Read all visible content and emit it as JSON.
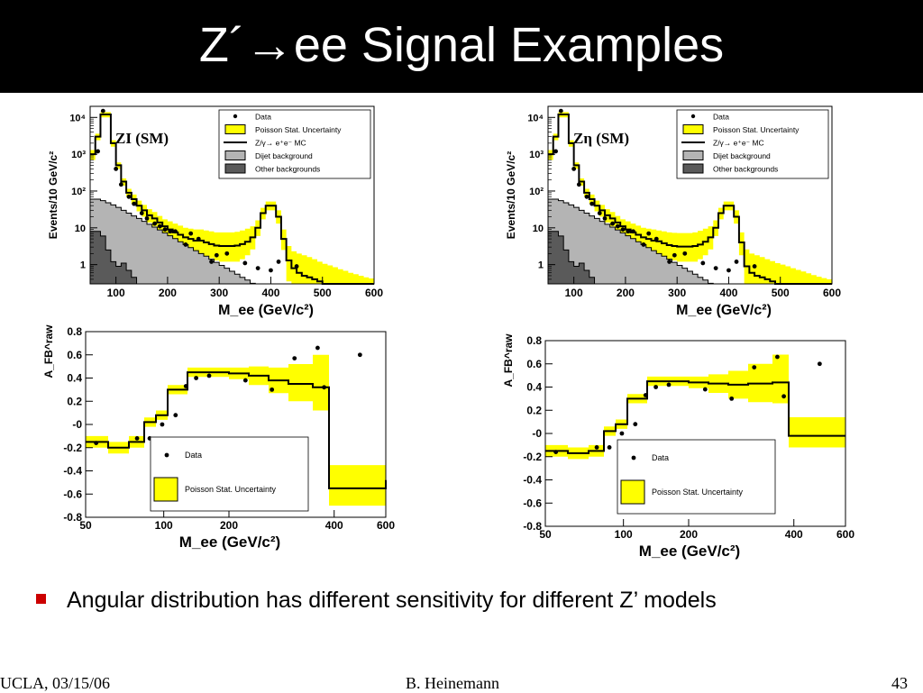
{
  "slide": {
    "title": "Z´→ee Signal Examples",
    "bullet": "Angular distribution has different sensitivity for different Z’ models",
    "footer_left": "UCLA, 03/15/06",
    "footer_center": "B. Heinemann",
    "footer_right": "43"
  },
  "colors": {
    "uncertainty": "#ffff00",
    "dijet": "#b4b4b4",
    "other": "#5a5a5a",
    "bullet": "#cc0000"
  },
  "chart_data": [
    {
      "type": "line",
      "panel": "top-left",
      "model_label": "ZΙ (SM)",
      "ylabel": "Events/10 GeV/c²",
      "xlabel": "M_ee (GeV/c²)",
      "xlim": [
        50,
        600
      ],
      "ylim_log": [
        0.3,
        20000
      ],
      "yscale": "log",
      "xticks": [
        100,
        200,
        300,
        400,
        500,
        600
      ],
      "yticks": [
        {
          "v": 1,
          "t": "1"
        },
        {
          "v": 10,
          "t": "10"
        },
        {
          "v": 100,
          "t": "10²"
        },
        {
          "v": 1000,
          "t": "10³"
        },
        {
          "v": 10000,
          "t": "10⁴"
        }
      ],
      "legend": [
        "Data",
        "Poisson Stat. Uncertainty",
        "Z/γ→ e⁺e⁻ MC",
        "Dijet background",
        "Other backgrounds"
      ],
      "legend_position": "top-right",
      "x": [
        50,
        60,
        70,
        80,
        90,
        100,
        110,
        120,
        130,
        140,
        150,
        160,
        170,
        180,
        190,
        200,
        210,
        220,
        230,
        240,
        250,
        260,
        270,
        280,
        290,
        300,
        310,
        320,
        330,
        340,
        350,
        360,
        370,
        380,
        390,
        400,
        410,
        420,
        430,
        440,
        450,
        460,
        470,
        480,
        490,
        500,
        510,
        520,
        530,
        540,
        550,
        560,
        570,
        580,
        590,
        600
      ],
      "mc": [
        1000,
        3000,
        12000,
        12000,
        2000,
        500,
        180,
        90,
        60,
        40,
        30,
        22,
        18,
        14,
        11,
        9,
        7.5,
        6.5,
        5.5,
        5,
        4.5,
        4.5,
        4,
        3.6,
        3.3,
        3.2,
        3.2,
        3.2,
        3.3,
        3.6,
        4.2,
        5.5,
        10,
        25,
        40,
        40,
        20,
        5,
        1.3,
        0.8,
        0.6,
        0.5,
        0.45,
        0.4,
        0.35,
        0.3,
        0.3,
        0.3,
        0.3,
        0.3,
        0.3,
        0.3,
        0.3,
        0.3,
        0.3
      ],
      "unc_low": [
        700,
        2400,
        10000,
        10000,
        1600,
        400,
        140,
        70,
        45,
        28,
        20,
        14,
        11,
        8.5,
        6.5,
        5,
        4,
        3.4,
        2.8,
        2.4,
        2.1,
        2,
        1.7,
        1.5,
        1.3,
        1.2,
        1.2,
        1.2,
        1.2,
        1.4,
        1.8,
        2.6,
        6,
        17,
        30,
        30,
        13,
        2.5,
        0.35,
        0.3,
        0.3,
        0.3,
        0.3,
        0.3,
        0.3,
        0.3,
        0.3,
        0.3,
        0.3,
        0.3,
        0.3,
        0.3,
        0.3,
        0.3,
        0.3
      ],
      "unc_high": [
        1300,
        3600,
        14000,
        14000,
        2400,
        600,
        220,
        115,
        80,
        55,
        42,
        32,
        27,
        21,
        17,
        15,
        13,
        11.5,
        10,
        9.5,
        9,
        9,
        8.5,
        8,
        7.5,
        7.5,
        7.5,
        7.5,
        7.8,
        8.5,
        9.5,
        11,
        16,
        35,
        52,
        52,
        30,
        9,
        3.2,
        2.3,
        2,
        1.8,
        1.6,
        1.4,
        1.2,
        1.05,
        0.95,
        0.85,
        0.75,
        0.68,
        0.6,
        0.55,
        0.5,
        0.45,
        0.42
      ],
      "dijet": [
        60,
        60,
        55,
        48,
        42,
        36,
        30,
        25,
        21,
        18,
        15,
        12.5,
        10.5,
        8.8,
        7.3,
        6.1,
        5.1,
        4.2,
        3.5,
        2.9,
        2.4,
        2,
        1.7,
        1.4,
        1.15,
        0.95,
        0.8,
        0.66,
        0.55,
        0.45,
        0.38,
        0.31
      ],
      "other": [
        8,
        8,
        6,
        2.5,
        1.2,
        0.9,
        1.1,
        0.7,
        0.45
      ],
      "data_points": [
        [
          65,
          1200
        ],
        [
          75,
          15000
        ],
        [
          100,
          400
        ],
        [
          110,
          150
        ],
        [
          125,
          70
        ],
        [
          135,
          45
        ],
        [
          150,
          25
        ],
        [
          160,
          18
        ],
        [
          175,
          13
        ],
        [
          185,
          11
        ],
        [
          195,
          9
        ],
        [
          205,
          8
        ],
        [
          215,
          8
        ],
        [
          235,
          3.5
        ],
        [
          245,
          7
        ],
        [
          260,
          5
        ],
        [
          285,
          1.2
        ],
        [
          295,
          1.8
        ],
        [
          315,
          2
        ],
        [
          350,
          1.1
        ],
        [
          375,
          0.8
        ],
        [
          400,
          0.7
        ],
        [
          415,
          1.2
        ],
        [
          450,
          0.9
        ]
      ]
    },
    {
      "type": "line",
      "panel": "top-right",
      "model_label": "Zη (SM)",
      "ylabel": "Events/10 GeV/c²",
      "xlabel": "M_ee (GeV/c²)",
      "xlim": [
        50,
        600
      ],
      "ylim_log": [
        0.3,
        20000
      ],
      "yscale": "log",
      "xticks": [
        100,
        200,
        300,
        400,
        500,
        600
      ],
      "yticks": [
        {
          "v": 1,
          "t": "1"
        },
        {
          "v": 10,
          "t": "10"
        },
        {
          "v": 100,
          "t": "10²"
        },
        {
          "v": 1000,
          "t": "10³"
        },
        {
          "v": 10000,
          "t": "10⁴"
        }
      ],
      "legend": [
        "Data",
        "Poisson Stat. Uncertainty",
        "Z/γ→ e⁺e⁻ MC",
        "Dijet background",
        "Other backgrounds"
      ],
      "legend_position": "top-right",
      "x": [
        50,
        60,
        70,
        80,
        90,
        100,
        110,
        120,
        130,
        140,
        150,
        160,
        170,
        180,
        190,
        200,
        210,
        220,
        230,
        240,
        250,
        260,
        270,
        280,
        290,
        300,
        310,
        320,
        330,
        340,
        350,
        360,
        370,
        380,
        390,
        400,
        410,
        420,
        430,
        440,
        450,
        460,
        470,
        480,
        490,
        500,
        510,
        520,
        530,
        540,
        550,
        560,
        570,
        580,
        590,
        600
      ],
      "mc": [
        1000,
        3000,
        12000,
        12000,
        2000,
        500,
        180,
        90,
        60,
        40,
        30,
        22,
        18,
        14,
        11,
        9,
        7.5,
        6.5,
        5.5,
        5,
        4.5,
        4.3,
        3.8,
        3.4,
        3.2,
        3.1,
        3.1,
        3.1,
        3.2,
        3.5,
        4.2,
        5.5,
        10,
        25,
        40,
        40,
        20,
        4,
        0.9,
        0.6,
        0.5,
        0.45,
        0.4,
        0.35,
        0.3,
        0.3,
        0.3,
        0.3,
        0.3,
        0.3,
        0.3,
        0.3,
        0.3,
        0.3,
        0.3
      ],
      "unc_low": [
        700,
        2400,
        10000,
        10000,
        1600,
        400,
        140,
        70,
        45,
        28,
        20,
        14,
        11,
        8.5,
        6.5,
        5,
        4,
        3.4,
        2.8,
        2.4,
        2.1,
        1.9,
        1.6,
        1.4,
        1.3,
        1.2,
        1.2,
        1.2,
        1.2,
        1.4,
        1.8,
        2.6,
        6,
        17,
        30,
        30,
        13,
        1.8,
        0.3,
        0.3,
        0.3,
        0.3,
        0.3,
        0.3,
        0.3,
        0.3,
        0.3,
        0.3,
        0.3,
        0.3,
        0.3,
        0.3,
        0.3,
        0.3,
        0.3
      ],
      "unc_high": [
        1300,
        3600,
        14000,
        14000,
        2400,
        600,
        220,
        115,
        80,
        55,
        42,
        32,
        27,
        21,
        17,
        15,
        13,
        11.5,
        10,
        9.5,
        9,
        8.5,
        8,
        7.5,
        7.3,
        7.2,
        7.2,
        7.2,
        7.5,
        8.3,
        9.5,
        11,
        16,
        35,
        52,
        52,
        30,
        7.5,
        2.6,
        2,
        1.8,
        1.6,
        1.4,
        1.25,
        1.1,
        1,
        0.9,
        0.8,
        0.72,
        0.65,
        0.58,
        0.52,
        0.47,
        0.43,
        0.4
      ],
      "dijet": [
        60,
        60,
        55,
        48,
        42,
        36,
        30,
        25,
        21,
        18,
        15,
        12.5,
        10.5,
        8.8,
        7.3,
        6.1,
        5.1,
        4.2,
        3.5,
        2.9,
        2.4,
        2,
        1.7,
        1.4,
        1.15,
        0.95,
        0.8,
        0.66,
        0.55,
        0.45,
        0.38,
        0.31
      ],
      "other": [
        8,
        8,
        6,
        2.5,
        1.2,
        0.9,
        1.1,
        0.7,
        0.45
      ],
      "data_points": [
        [
          65,
          1200
        ],
        [
          75,
          15000
        ],
        [
          100,
          400
        ],
        [
          110,
          150
        ],
        [
          125,
          70
        ],
        [
          135,
          45
        ],
        [
          150,
          25
        ],
        [
          160,
          18
        ],
        [
          175,
          13
        ],
        [
          185,
          11
        ],
        [
          195,
          9
        ],
        [
          205,
          8
        ],
        [
          215,
          8
        ],
        [
          235,
          3.5
        ],
        [
          245,
          7
        ],
        [
          260,
          5
        ],
        [
          285,
          1.2
        ],
        [
          295,
          1.8
        ],
        [
          315,
          2
        ],
        [
          350,
          1.1
        ],
        [
          375,
          0.8
        ],
        [
          400,
          0.7
        ],
        [
          415,
          1.2
        ],
        [
          450,
          0.9
        ]
      ]
    },
    {
      "type": "line",
      "panel": "bottom-left",
      "ylabel": "A_FB^raw",
      "xlabel": "M_ee (GeV/c²)",
      "x_edges": [
        50,
        65,
        80,
        95,
        110,
        125,
        150,
        175,
        200,
        230,
        260,
        290,
        330,
        380,
        600
      ],
      "xtick_labels": [
        {
          "x": 50,
          "t": "50"
        },
        {
          "x": 120,
          "t": "100"
        },
        {
          "x": 200,
          "t": "200"
        },
        {
          "x": 400,
          "t": "400"
        },
        {
          "x": 600,
          "t": "600"
        }
      ],
      "yticks": [
        {
          "v": 0.8,
          "t": "0.8"
        },
        {
          "v": 0.6,
          "t": "0.6"
        },
        {
          "v": 0.4,
          "t": "0.4"
        },
        {
          "v": 0.2,
          "t": "0.2"
        },
        {
          "v": 0,
          "t": "-0"
        },
        {
          "v": -0.2,
          "t": "-0.2"
        },
        {
          "v": -0.4,
          "t": "-0.4"
        },
        {
          "v": -0.6,
          "t": "-0.6"
        },
        {
          "v": -0.8,
          "t": "-0.8"
        }
      ],
      "ylim": [
        -0.8,
        0.8
      ],
      "legend": [
        "Data",
        "Poisson Stat. Uncertainty"
      ],
      "legend_position": "bottom-center",
      "afb_mc": [
        -0.15,
        -0.2,
        -0.15,
        0.02,
        0.08,
        0.3,
        0.45,
        0.45,
        0.44,
        0.42,
        0.38,
        0.35,
        0.32,
        -0.55,
        -0.48
      ],
      "afb_low": [
        -0.2,
        -0.25,
        -0.2,
        -0.02,
        0.04,
        0.26,
        0.41,
        0.41,
        0.39,
        0.34,
        0.27,
        0.2,
        0.12,
        -0.7,
        -0.62
      ],
      "afb_high": [
        -0.1,
        -0.15,
        -0.1,
        0.06,
        0.12,
        0.34,
        0.49,
        0.49,
        0.49,
        0.5,
        0.49,
        0.52,
        0.6,
        -0.35,
        -0.34
      ],
      "data_points": [
        [
          57,
          -0.16
        ],
        [
          88,
          -0.12
        ],
        [
          102,
          -0.12
        ],
        [
          118,
          0
        ],
        [
          135,
          0.08
        ],
        [
          148,
          0.33
        ],
        [
          160,
          0.4
        ],
        [
          175,
          0.42
        ],
        [
          225,
          0.38
        ],
        [
          265,
          0.3
        ],
        [
          300,
          0.57
        ],
        [
          345,
          0.66
        ],
        [
          365,
          0.32
        ],
        [
          500,
          0.6
        ]
      ]
    },
    {
      "type": "line",
      "panel": "bottom-right",
      "ylabel": "A_FB^raw",
      "xlabel": "M_ee (GeV/c²)",
      "x_edges": [
        50,
        65,
        80,
        95,
        110,
        125,
        150,
        175,
        200,
        230,
        260,
        290,
        330,
        380,
        600
      ],
      "xtick_labels": [
        {
          "x": 50,
          "t": "50"
        },
        {
          "x": 120,
          "t": "100"
        },
        {
          "x": 200,
          "t": "200"
        },
        {
          "x": 400,
          "t": "400"
        },
        {
          "x": 600,
          "t": "600"
        }
      ],
      "yticks": [
        {
          "v": 0.8,
          "t": "0.8"
        },
        {
          "v": 0.6,
          "t": "0.6"
        },
        {
          "v": 0.4,
          "t": "0.4"
        },
        {
          "v": 0.2,
          "t": "0.2"
        },
        {
          "v": 0,
          "t": "-0"
        },
        {
          "v": -0.2,
          "t": "-0.2"
        },
        {
          "v": -0.4,
          "t": "-0.4"
        },
        {
          "v": -0.6,
          "t": "-0.6"
        },
        {
          "v": -0.8,
          "t": "-0.8"
        }
      ],
      "ylim": [
        -0.8,
        0.8
      ],
      "legend": [
        "Data",
        "Poisson Stat. Uncertainty"
      ],
      "legend_position": "bottom-left",
      "afb_mc": [
        -0.15,
        -0.17,
        -0.15,
        0.02,
        0.08,
        0.3,
        0.45,
        0.45,
        0.44,
        0.43,
        0.42,
        0.43,
        0.44,
        -0.02,
        -0.02
      ],
      "afb_low": [
        -0.2,
        -0.22,
        -0.2,
        -0.02,
        0.04,
        0.26,
        0.41,
        0.41,
        0.39,
        0.35,
        0.3,
        0.27,
        0.26,
        -0.12,
        -0.12
      ],
      "afb_high": [
        -0.1,
        -0.12,
        -0.1,
        0.06,
        0.12,
        0.34,
        0.49,
        0.49,
        0.49,
        0.51,
        0.54,
        0.6,
        0.68,
        0.14,
        0.14
      ],
      "data_points": [
        [
          57,
          -0.16
        ],
        [
          88,
          -0.12
        ],
        [
          102,
          -0.12
        ],
        [
          118,
          0
        ],
        [
          135,
          0.08
        ],
        [
          148,
          0.33
        ],
        [
          160,
          0.4
        ],
        [
          175,
          0.42
        ],
        [
          225,
          0.38
        ],
        [
          265,
          0.3
        ],
        [
          300,
          0.57
        ],
        [
          345,
          0.66
        ],
        [
          365,
          0.32
        ],
        [
          500,
          0.6
        ]
      ]
    }
  ]
}
